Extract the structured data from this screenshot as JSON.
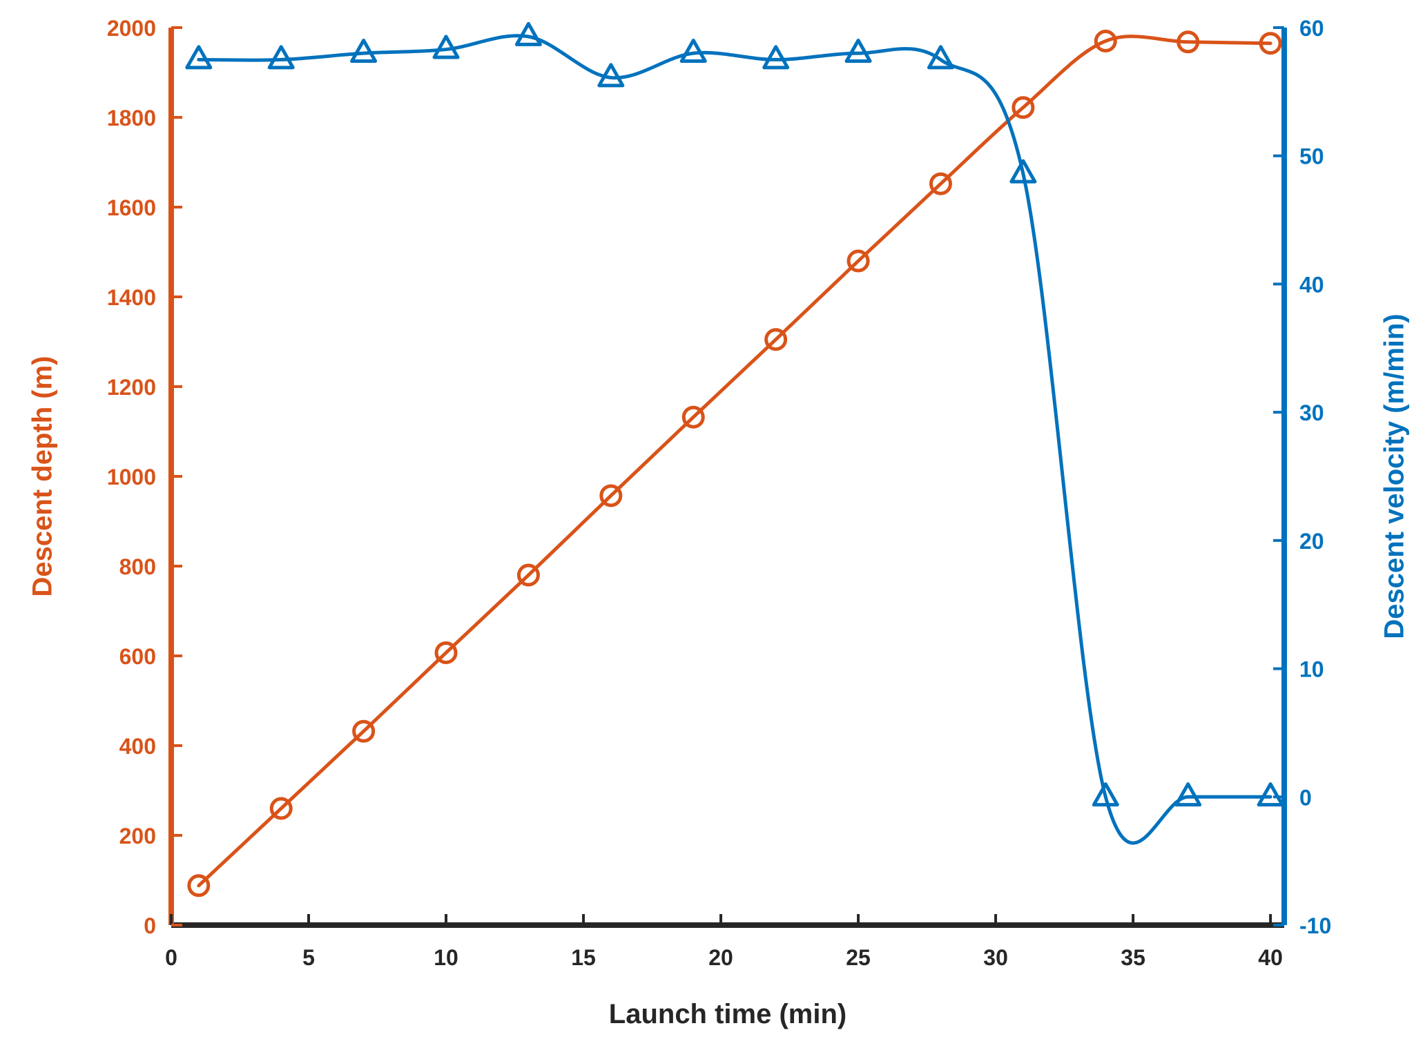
{
  "chart_data": {
    "type": "line",
    "xlabel": "Launch time (min)",
    "x_ticks": [
      0,
      5,
      10,
      15,
      20,
      25,
      30,
      35,
      40
    ],
    "xlim": [
      0,
      40.5
    ],
    "left_axis": {
      "label": "Descent depth (m)",
      "ylim": [
        0,
        2000
      ],
      "ticks": [
        0,
        200,
        400,
        600,
        800,
        1000,
        1200,
        1400,
        1600,
        1800,
        2000
      ],
      "color": "#D95319"
    },
    "right_axis": {
      "label": "Descent velocity (m/min)",
      "ylim": [
        -10,
        60
      ],
      "ticks": [
        -10,
        0,
        10,
        20,
        30,
        40,
        50,
        60
      ],
      "color": "#0072BD"
    },
    "series": [
      {
        "axis": "left",
        "marker": "circle",
        "color": "#D95319",
        "x": [
          1,
          4,
          7,
          10,
          13,
          16,
          19,
          22,
          25,
          28,
          31,
          34,
          37,
          40
        ],
        "values": [
          88,
          260,
          432,
          607,
          780,
          957,
          1132,
          1305,
          1480,
          1652,
          1822,
          1970,
          1968,
          1965
        ]
      },
      {
        "axis": "right",
        "marker": "triangle",
        "color": "#0072BD",
        "x": [
          1,
          4,
          7,
          10,
          13,
          16,
          19,
          22,
          25,
          28,
          31,
          34,
          37,
          40
        ],
        "values": [
          57.5,
          57.5,
          58,
          58.3,
          59.3,
          56.1,
          58,
          57.5,
          58,
          57.5,
          48.6,
          0,
          0,
          0
        ]
      }
    ]
  }
}
